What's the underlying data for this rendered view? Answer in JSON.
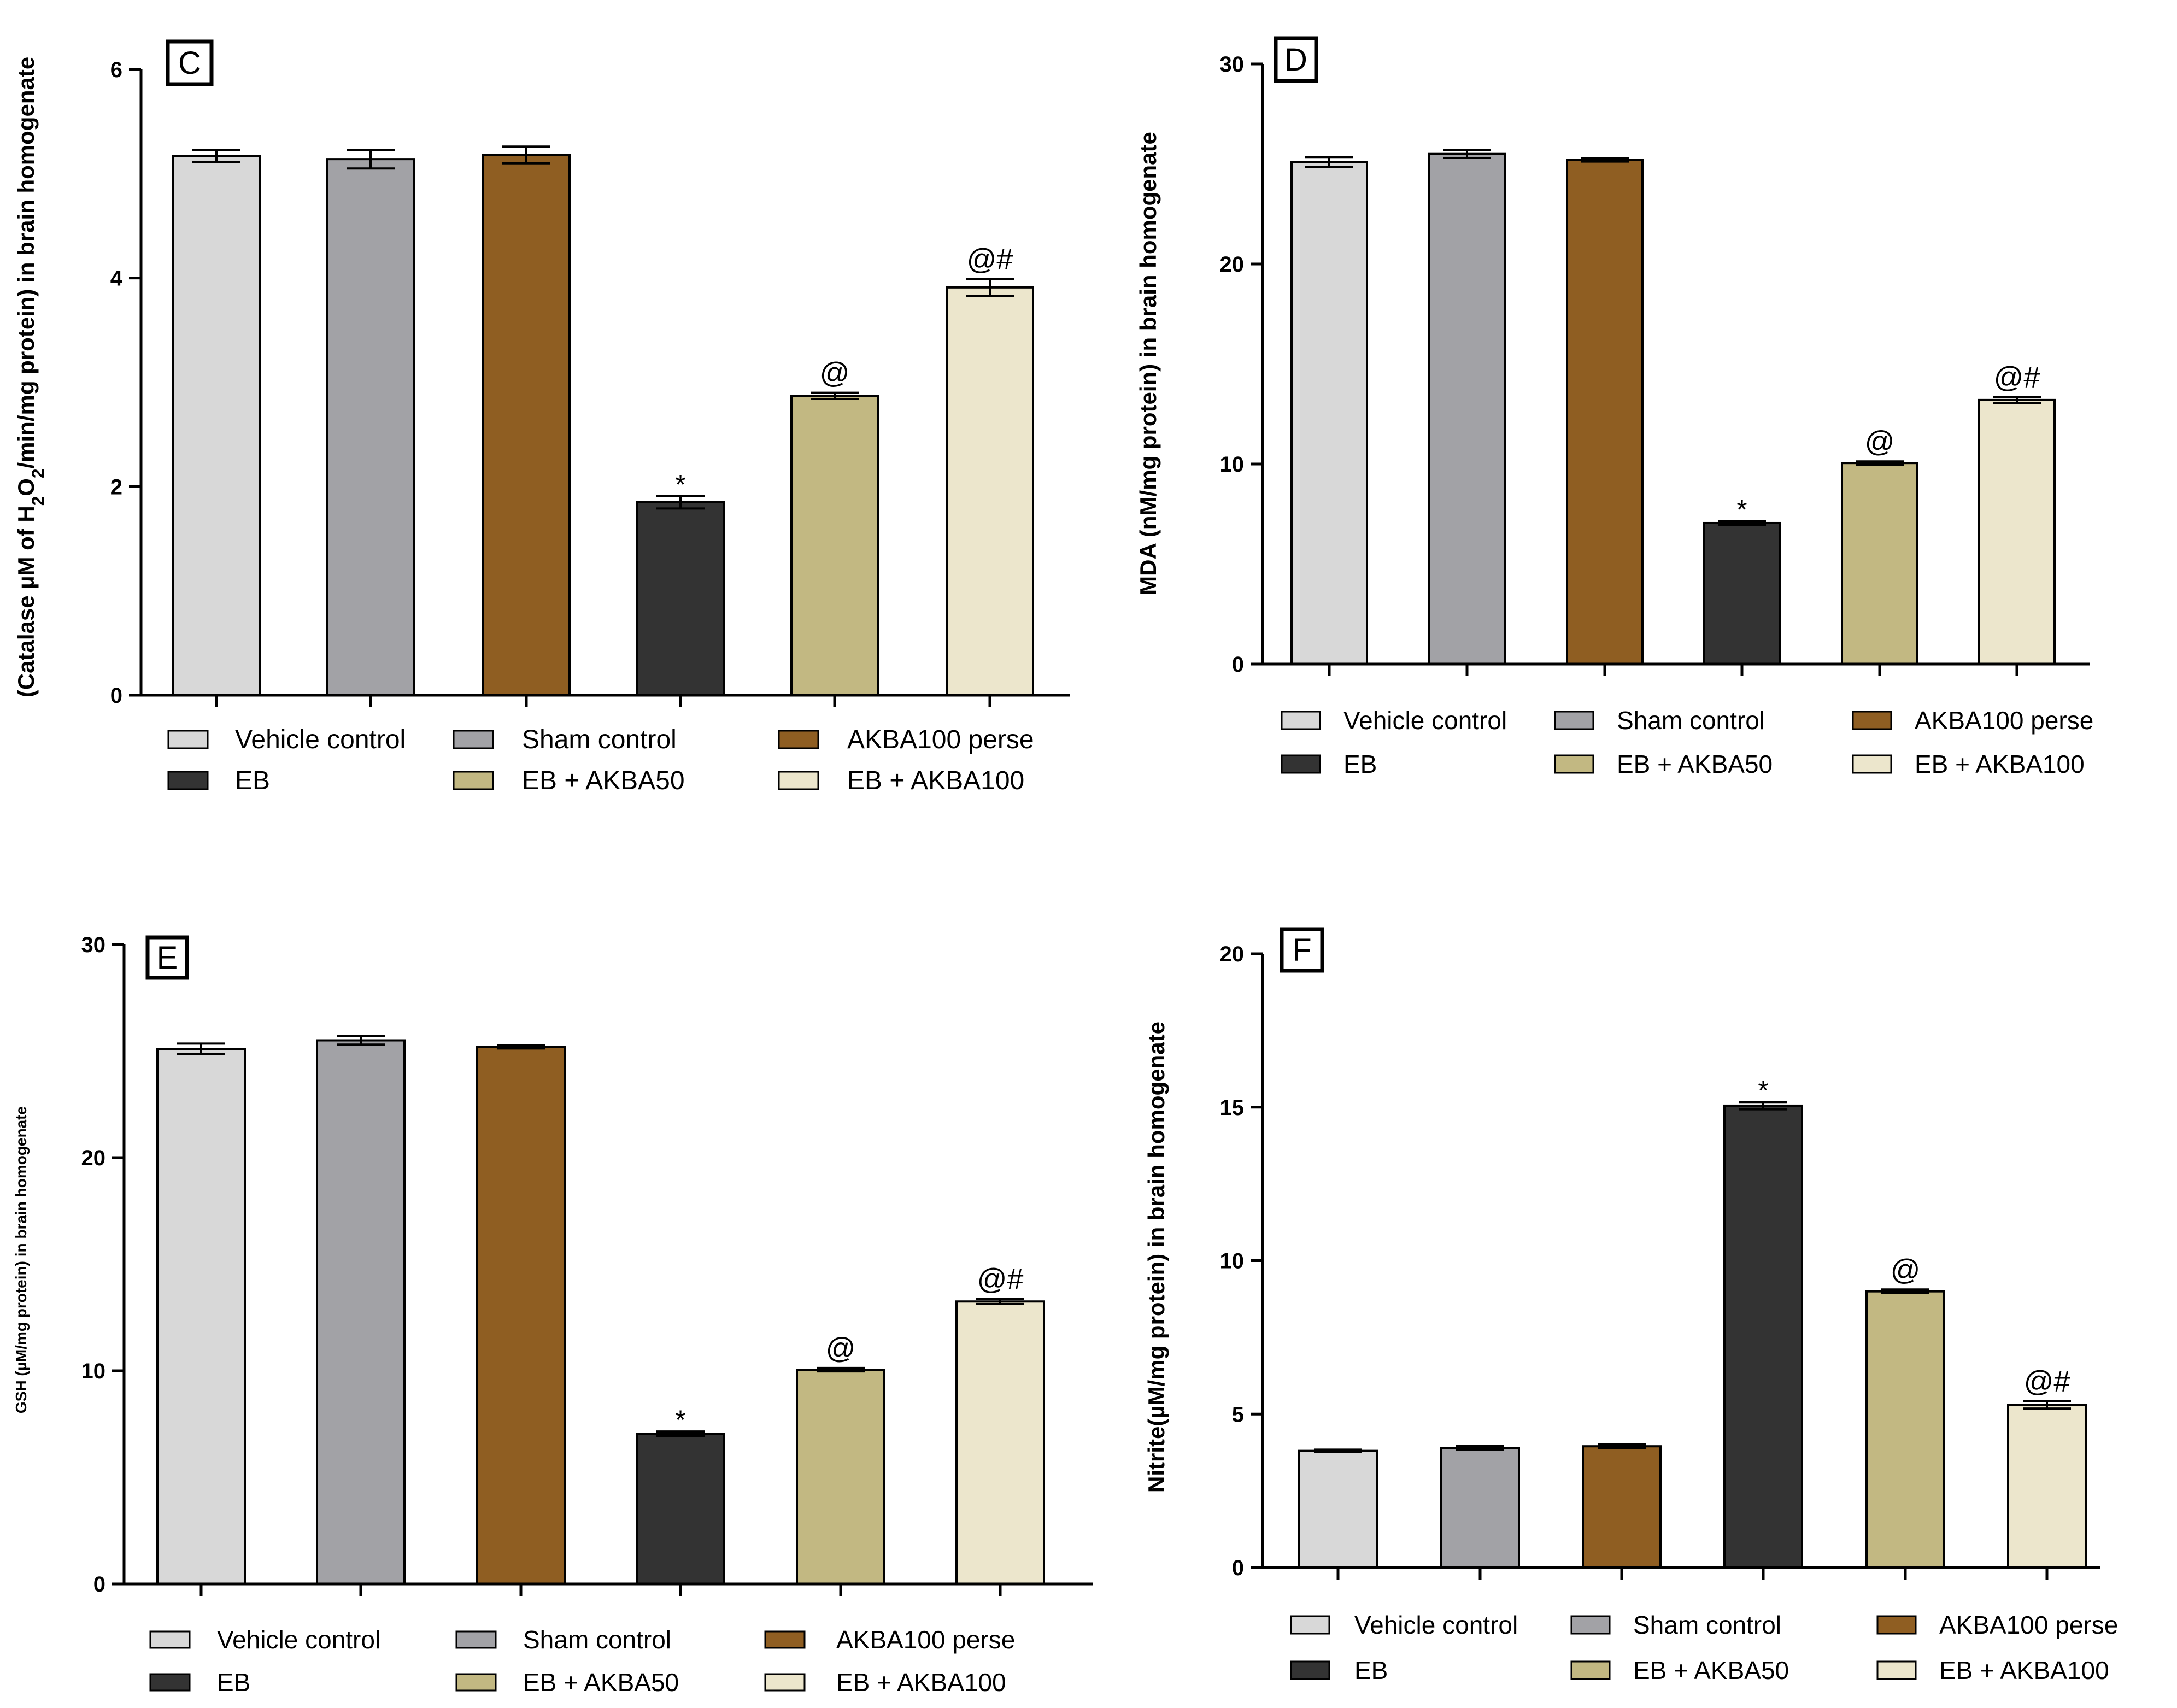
{
  "colors": {
    "vehicle": "#d8d8d8",
    "sham": "#a2a2a6",
    "akba_perse": "#8f5e22",
    "eb": "#333333",
    "eb_akba50": "#c2b882",
    "eb_akba100": "#ece6cc",
    "axis": "#000000"
  },
  "chart_data": [
    {
      "panel": "C",
      "type": "bar",
      "ylabel_parts": [
        "(Catalase µM of H",
        "2",
        "O",
        "2",
        "/min/mg protein) in brain homogenate"
      ],
      "ylim": [
        0,
        6
      ],
      "yticks": [
        "0",
        "2",
        "4",
        "6"
      ],
      "categories": [
        "Vehicle control",
        "Sham control",
        "AKBA100 perse",
        "EB",
        "EB + AKBA50",
        "EB + AKBA100"
      ],
      "values": [
        5.17,
        5.14,
        5.18,
        1.85,
        2.87,
        3.91
      ],
      "errors": [
        0.06,
        0.09,
        0.08,
        0.06,
        0.03,
        0.08
      ],
      "annotations": [
        "",
        "",
        "",
        "*",
        "@",
        "@#"
      ],
      "legend": {
        "row1": [
          "Vehicle control",
          "Sham control",
          "AKBA100 perse"
        ],
        "row2": [
          "EB",
          "EB + AKBA50",
          "EB + AKBA100"
        ]
      }
    },
    {
      "panel": "D",
      "type": "bar",
      "ylabel": "MDA (nM/mg protein) in brain homogenate",
      "ylim": [
        0,
        30
      ],
      "yticks": [
        "0",
        "10",
        "20",
        "30"
      ],
      "categories": [
        "Vehicle control",
        "Sham control",
        "AKBA100 perse",
        "EB",
        "EB + AKBA50",
        "EB + AKBA100"
      ],
      "values": [
        25.1,
        25.5,
        25.2,
        7.05,
        10.05,
        13.2
      ],
      "errors": [
        0.25,
        0.2,
        0.08,
        0.1,
        0.08,
        0.15
      ],
      "annotations": [
        "",
        "",
        "",
        "*",
        "@",
        "@#"
      ],
      "legend": {
        "row1": [
          "Vehicle control",
          "Sham control",
          "AKBA100 perse"
        ],
        "row2": [
          "EB",
          "EB + AKBA50",
          "EB + AKBA100"
        ]
      }
    },
    {
      "panel": "E",
      "type": "bar",
      "ylabel": "GSH (µM/mg protein) in brain homogenate",
      "ylim": [
        0,
        30
      ],
      "yticks": [
        "0",
        "10",
        "20",
        "30"
      ],
      "categories": [
        "Vehicle control",
        "Sham control",
        "AKBA100 perse",
        "EB",
        "EB + AKBA50",
        "EB + AKBA100"
      ],
      "values": [
        25.1,
        25.5,
        25.2,
        7.05,
        10.05,
        13.25
      ],
      "errors": [
        0.25,
        0.2,
        0.08,
        0.1,
        0.08,
        0.12
      ],
      "annotations": [
        "",
        "",
        "",
        "*",
        "@",
        "@#"
      ],
      "legend": {
        "row1": [
          "Vehicle control",
          "Sham control",
          "AKBA100 perse"
        ],
        "row2": [
          "EB",
          "EB + AKBA50",
          "EB + AKBA100"
        ]
      }
    },
    {
      "panel": "F",
      "type": "bar",
      "ylabel": "Nitrite(µM/mg protein) in brain homogenate",
      "ylim": [
        0,
        20
      ],
      "yticks": [
        "0",
        "5",
        "10",
        "15",
        "20"
      ],
      "categories": [
        "Vehicle control",
        "Sham control",
        "AKBA100 perse",
        "EB",
        "EB + AKBA50",
        "EB + AKBA100"
      ],
      "values": [
        3.8,
        3.9,
        3.95,
        15.05,
        9.0,
        5.3
      ],
      "errors": [
        0.04,
        0.06,
        0.06,
        0.12,
        0.06,
        0.12
      ],
      "annotations": [
        "",
        "",
        "",
        "*",
        "@",
        "@#"
      ],
      "legend": {
        "row1": [
          "Vehicle control",
          "Sham control",
          "AKBA100  perse"
        ],
        "row2": [
          "EB",
          "EB + AKBA50",
          "EB + AKBA100"
        ]
      }
    }
  ]
}
